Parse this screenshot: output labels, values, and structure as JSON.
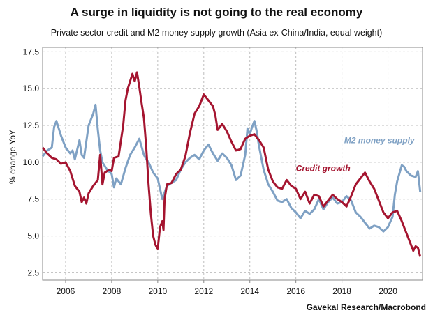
{
  "title": "A surge in liquidity is not going to the real economy",
  "subtitle": "Private sector credit and M2 money supply growth (Asia ex-China/India, equal weight)",
  "source": "Gavekal Research/Macrobond",
  "chart_data": {
    "type": "line",
    "ylabel": "% change YoY",
    "xlim": [
      2005.0,
      2021.5
    ],
    "ylim": [
      2.0,
      17.8
    ],
    "yticks": [
      "2.5",
      "5.0",
      "7.5",
      "10.0",
      "12.5",
      "15.0",
      "17.5"
    ],
    "xticks": [
      "2006",
      "2008",
      "2010",
      "2012",
      "2014",
      "2016",
      "2018",
      "2020"
    ],
    "grid": true,
    "series": [
      {
        "name": "Credit growth",
        "color": "#a51530",
        "points": [
          [
            2005.0,
            11.0
          ],
          [
            2005.2,
            10.6
          ],
          [
            2005.4,
            10.3
          ],
          [
            2005.6,
            10.2
          ],
          [
            2005.8,
            9.9
          ],
          [
            2006.0,
            10.0
          ],
          [
            2006.2,
            9.4
          ],
          [
            2006.4,
            8.4
          ],
          [
            2006.6,
            8.0
          ],
          [
            2006.7,
            7.3
          ],
          [
            2006.8,
            7.6
          ],
          [
            2006.9,
            7.2
          ],
          [
            2007.0,
            7.9
          ],
          [
            2007.2,
            8.4
          ],
          [
            2007.4,
            8.8
          ],
          [
            2007.5,
            10.5
          ],
          [
            2007.6,
            8.5
          ],
          [
            2007.7,
            9.3
          ],
          [
            2007.9,
            9.5
          ],
          [
            2008.0,
            9.4
          ],
          [
            2008.1,
            10.3
          ],
          [
            2008.3,
            10.4
          ],
          [
            2008.5,
            12.5
          ],
          [
            2008.6,
            14.2
          ],
          [
            2008.7,
            15.0
          ],
          [
            2008.8,
            15.5
          ],
          [
            2008.9,
            16.0
          ],
          [
            2009.0,
            15.5
          ],
          [
            2009.1,
            16.1
          ],
          [
            2009.2,
            15.1
          ],
          [
            2009.3,
            14.0
          ],
          [
            2009.4,
            13.0
          ],
          [
            2009.5,
            11.0
          ],
          [
            2009.6,
            8.5
          ],
          [
            2009.7,
            6.5
          ],
          [
            2009.8,
            5.0
          ],
          [
            2009.9,
            4.4
          ],
          [
            2010.0,
            4.1
          ],
          [
            2010.1,
            5.6
          ],
          [
            2010.2,
            6.0
          ],
          [
            2010.25,
            5.4
          ],
          [
            2010.3,
            7.5
          ],
          [
            2010.4,
            8.5
          ],
          [
            2010.6,
            8.6
          ],
          [
            2010.8,
            9.2
          ],
          [
            2011.0,
            9.5
          ],
          [
            2011.2,
            10.4
          ],
          [
            2011.4,
            12.0
          ],
          [
            2011.6,
            13.3
          ],
          [
            2011.8,
            13.8
          ],
          [
            2012.0,
            14.6
          ],
          [
            2012.2,
            14.2
          ],
          [
            2012.4,
            13.8
          ],
          [
            2012.5,
            13.2
          ],
          [
            2012.6,
            12.2
          ],
          [
            2012.8,
            12.6
          ],
          [
            2013.0,
            12.1
          ],
          [
            2013.2,
            11.4
          ],
          [
            2013.4,
            10.8
          ],
          [
            2013.6,
            10.9
          ],
          [
            2013.8,
            11.6
          ],
          [
            2014.0,
            11.8
          ],
          [
            2014.2,
            11.9
          ],
          [
            2014.4,
            11.5
          ],
          [
            2014.6,
            11.0
          ],
          [
            2014.8,
            9.5
          ],
          [
            2015.0,
            8.7
          ],
          [
            2015.2,
            8.3
          ],
          [
            2015.4,
            8.2
          ],
          [
            2015.6,
            8.8
          ],
          [
            2015.8,
            8.4
          ],
          [
            2016.0,
            8.2
          ],
          [
            2016.2,
            7.5
          ],
          [
            2016.4,
            8.0
          ],
          [
            2016.6,
            7.2
          ],
          [
            2016.8,
            7.8
          ],
          [
            2017.0,
            7.7
          ],
          [
            2017.2,
            7.0
          ],
          [
            2017.4,
            7.4
          ],
          [
            2017.6,
            7.8
          ],
          [
            2017.8,
            7.5
          ],
          [
            2018.0,
            7.3
          ],
          [
            2018.2,
            7.0
          ],
          [
            2018.4,
            7.7
          ],
          [
            2018.6,
            8.5
          ],
          [
            2018.8,
            8.9
          ],
          [
            2019.0,
            9.3
          ],
          [
            2019.2,
            8.7
          ],
          [
            2019.4,
            8.2
          ],
          [
            2019.6,
            7.4
          ],
          [
            2019.8,
            6.6
          ],
          [
            2020.0,
            6.2
          ],
          [
            2020.2,
            6.6
          ],
          [
            2020.4,
            6.7
          ],
          [
            2020.6,
            6.0
          ],
          [
            2020.8,
            5.2
          ],
          [
            2021.0,
            4.4
          ],
          [
            2021.1,
            4.0
          ],
          [
            2021.2,
            4.3
          ],
          [
            2021.3,
            4.2
          ],
          [
            2021.4,
            3.6
          ]
        ]
      },
      {
        "name": "M2 money supply",
        "color": "#7fa1c4",
        "points": [
          [
            2005.0,
            10.4
          ],
          [
            2005.2,
            10.8
          ],
          [
            2005.4,
            11.0
          ],
          [
            2005.5,
            12.4
          ],
          [
            2005.6,
            12.8
          ],
          [
            2005.8,
            11.8
          ],
          [
            2006.0,
            11.0
          ],
          [
            2006.2,
            10.6
          ],
          [
            2006.3,
            10.8
          ],
          [
            2006.4,
            10.2
          ],
          [
            2006.6,
            11.5
          ],
          [
            2006.7,
            10.5
          ],
          [
            2006.8,
            10.3
          ],
          [
            2007.0,
            12.5
          ],
          [
            2007.2,
            13.3
          ],
          [
            2007.3,
            13.9
          ],
          [
            2007.4,
            12.2
          ],
          [
            2007.5,
            10.8
          ],
          [
            2007.6,
            10.0
          ],
          [
            2007.8,
            9.5
          ],
          [
            2008.0,
            9.2
          ],
          [
            2008.1,
            8.3
          ],
          [
            2008.2,
            8.9
          ],
          [
            2008.4,
            8.5
          ],
          [
            2008.6,
            9.6
          ],
          [
            2008.8,
            10.5
          ],
          [
            2009.0,
            11.0
          ],
          [
            2009.2,
            11.6
          ],
          [
            2009.4,
            10.5
          ],
          [
            2009.5,
            10.2
          ],
          [
            2009.6,
            10.0
          ],
          [
            2009.8,
            9.3
          ],
          [
            2010.0,
            8.9
          ],
          [
            2010.2,
            7.5
          ],
          [
            2010.4,
            8.4
          ],
          [
            2010.6,
            8.6
          ],
          [
            2010.8,
            8.8
          ],
          [
            2011.0,
            9.5
          ],
          [
            2011.2,
            10.0
          ],
          [
            2011.4,
            10.3
          ],
          [
            2011.6,
            10.5
          ],
          [
            2011.8,
            10.2
          ],
          [
            2012.0,
            10.8
          ],
          [
            2012.2,
            11.2
          ],
          [
            2012.4,
            10.6
          ],
          [
            2012.6,
            10.1
          ],
          [
            2012.8,
            10.6
          ],
          [
            2013.0,
            10.3
          ],
          [
            2013.2,
            9.8
          ],
          [
            2013.4,
            8.8
          ],
          [
            2013.6,
            9.1
          ],
          [
            2013.8,
            10.5
          ],
          [
            2013.9,
            12.3
          ],
          [
            2014.0,
            11.9
          ],
          [
            2014.1,
            12.4
          ],
          [
            2014.2,
            12.8
          ],
          [
            2014.3,
            12.1
          ],
          [
            2014.4,
            11.1
          ],
          [
            2014.6,
            9.5
          ],
          [
            2014.8,
            8.5
          ],
          [
            2015.0,
            8.0
          ],
          [
            2015.2,
            7.4
          ],
          [
            2015.4,
            7.3
          ],
          [
            2015.6,
            7.5
          ],
          [
            2015.8,
            6.9
          ],
          [
            2016.0,
            6.6
          ],
          [
            2016.2,
            6.2
          ],
          [
            2016.4,
            6.7
          ],
          [
            2016.6,
            6.5
          ],
          [
            2016.8,
            6.8
          ],
          [
            2017.0,
            7.5
          ],
          [
            2017.2,
            6.8
          ],
          [
            2017.4,
            7.3
          ],
          [
            2017.6,
            7.6
          ],
          [
            2017.8,
            7.2
          ],
          [
            2018.0,
            7.3
          ],
          [
            2018.2,
            7.7
          ],
          [
            2018.4,
            7.4
          ],
          [
            2018.6,
            6.6
          ],
          [
            2018.8,
            6.3
          ],
          [
            2019.0,
            5.9
          ],
          [
            2019.2,
            5.5
          ],
          [
            2019.4,
            5.7
          ],
          [
            2019.6,
            5.6
          ],
          [
            2019.8,
            5.3
          ],
          [
            2020.0,
            5.6
          ],
          [
            2020.2,
            6.3
          ],
          [
            2020.3,
            7.8
          ],
          [
            2020.4,
            8.7
          ],
          [
            2020.6,
            9.8
          ],
          [
            2020.7,
            9.7
          ],
          [
            2020.8,
            9.4
          ],
          [
            2021.0,
            9.1
          ],
          [
            2021.2,
            9.0
          ],
          [
            2021.3,
            9.4
          ],
          [
            2021.4,
            8.0
          ]
        ]
      }
    ]
  }
}
